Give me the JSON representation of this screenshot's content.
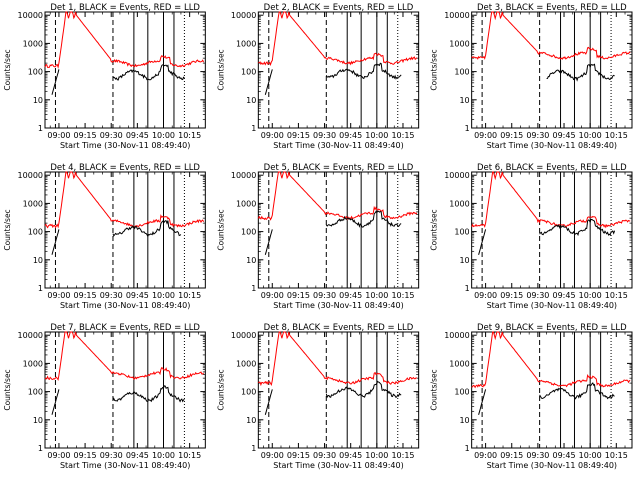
{
  "chart_data": {
    "type": "line",
    "x_tick_labels": [
      "09:00",
      "09:15",
      "09:30",
      "09:45",
      "10:00",
      "10:15"
    ],
    "x_ticks_minutes_after_0900": [
      0,
      15,
      30,
      45,
      60,
      75
    ],
    "x_range_minutes_after_0900": [
      -8,
      84
    ],
    "y_tick_labels": [
      "1",
      "10",
      "100",
      "1000",
      "10000"
    ],
    "y_ticks": [
      1,
      10,
      100,
      1000,
      10000
    ],
    "ylim": [
      1,
      13000
    ],
    "yscale": "log",
    "ylabel": "Counts/sec",
    "xlabel": "Start Time (30-Nov-11 08:49:40)",
    "series_colors": {
      "events": "#000000",
      "lld": "#ff0000"
    },
    "panels": [
      {
        "title": "Det 1, BLACK = Events, RED = LLD",
        "lld_base": 200,
        "ev_base": 80,
        "ev_start": 4,
        "ev_end": 72
      },
      {
        "title": "Det 2, BLACK = Events, RED = LLD",
        "lld_base": 250,
        "ev_base": 90,
        "ev_start": 2,
        "ev_end": 74
      },
      {
        "title": "Det 3, BLACK = Events, RED = LLD",
        "lld_base": 380,
        "ev_base": 80,
        "ev_start": 35,
        "ev_end": 74
      },
      {
        "title": "Det 4, BLACK = Events, RED = LLD",
        "lld_base": 200,
        "ev_base": 110,
        "ev_start": 2,
        "ev_end": 70
      },
      {
        "title": "Det 5, BLACK = Events, RED = LLD",
        "lld_base": 380,
        "ev_base": 230,
        "ev_start": 2,
        "ev_end": 74
      },
      {
        "title": "Det 6, BLACK = Events, RED = LLD",
        "lld_base": 200,
        "ev_base": 120,
        "ev_start": 2,
        "ev_end": 74
      },
      {
        "title": "Det 7, BLACK = Events, RED = LLD",
        "lld_base": 380,
        "ev_base": 70,
        "ev_start": 2,
        "ev_end": 72
      },
      {
        "title": "Det 8, BLACK = Events, RED = LLD",
        "lld_base": 250,
        "ev_base": 100,
        "ev_start": 2,
        "ev_end": 74
      },
      {
        "title": "Det 9, BLACK = Events, RED = LLD",
        "lld_base": 200,
        "ev_base": 90,
        "ev_start": 2,
        "ev_end": 74
      }
    ],
    "vertical_markers_dashed_minutes": [
      -2,
      31
    ],
    "vertical_markers_solid_minutes": [
      43,
      51,
      60,
      66
    ],
    "vertical_markers_dotted_minutes": [
      72
    ]
  }
}
